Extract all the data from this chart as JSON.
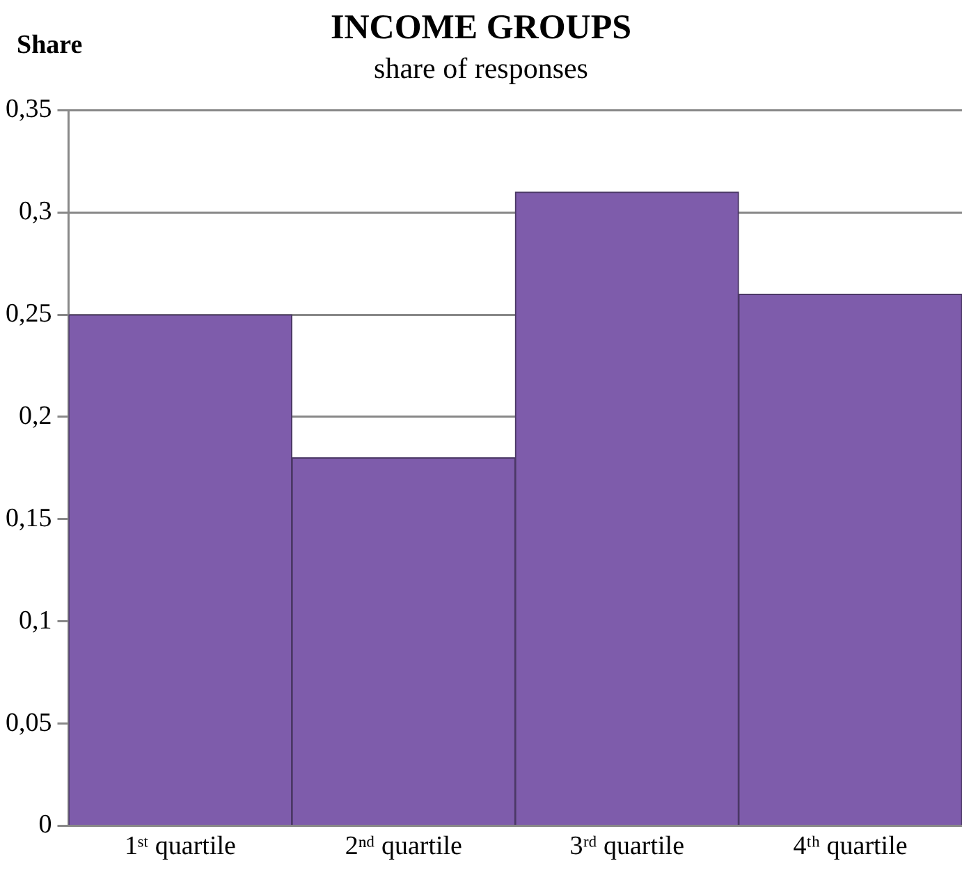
{
  "chart_data": {
    "type": "bar",
    "title": "INCOME GROUPS",
    "subtitle": "share of responses",
    "ylabel": "Share",
    "categories": [
      "1ˢᵗ quartile",
      "2ⁿᵈ quartile",
      "3ʳᵈ quartile",
      "4ᵗʰ quartile"
    ],
    "values": [
      0.25,
      0.18,
      0.31,
      0.26
    ],
    "color": "#7e5cab",
    "ylim": [
      0,
      0.35
    ],
    "yticks": [
      0,
      {
        "value": 0.05,
        "label": "0,05"
      },
      {
        "value": 0.1,
        "label": "0,1"
      },
      {
        "value": 0.15,
        "label": "0,15"
      },
      {
        "value": 0.2,
        "label": "0,2"
      },
      {
        "value": 0.25,
        "label": "0,25"
      },
      {
        "value": 0.3,
        "label": "0,3"
      },
      {
        "value": 0.35,
        "label": "0,35"
      }
    ],
    "grid": "y",
    "legend": false
  }
}
